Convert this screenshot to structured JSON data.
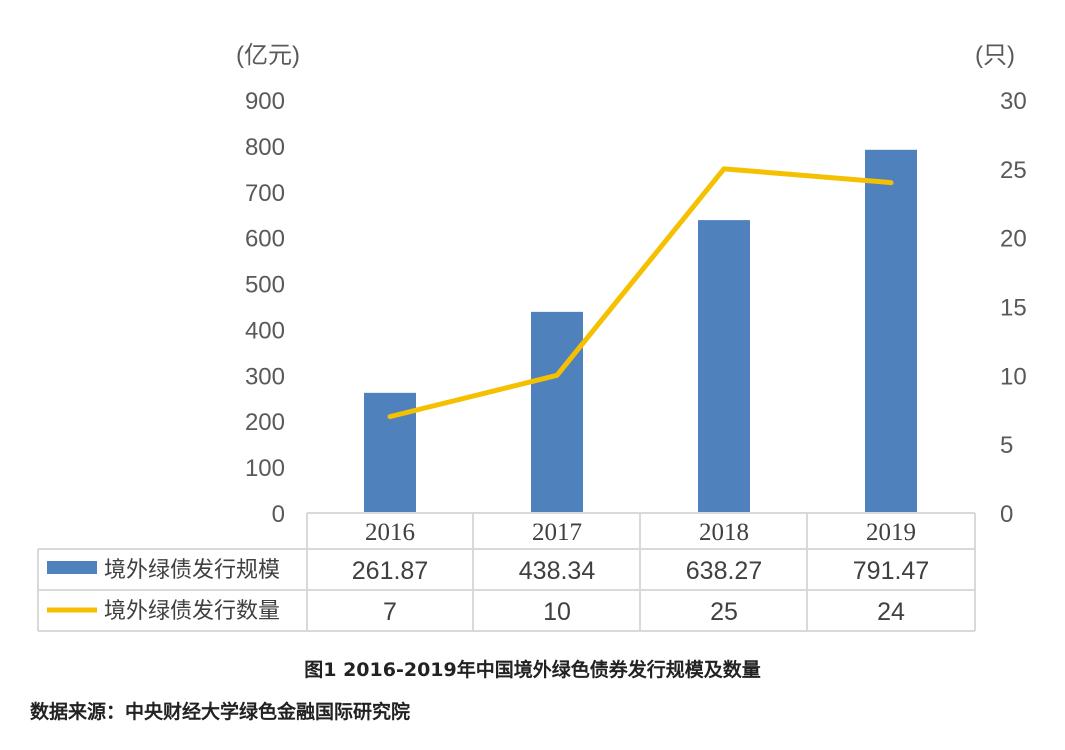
{
  "chart_data": {
    "type": "bar",
    "categories": [
      "2016",
      "2017",
      "2018",
      "2019"
    ],
    "series": [
      {
        "name": "境外绿债发行规模",
        "chart_type": "bar",
        "axis": "left",
        "values": [
          261.87,
          438.34,
          638.27,
          791.47
        ]
      },
      {
        "name": "境外绿债发行数量",
        "chart_type": "line",
        "axis": "right",
        "values": [
          7,
          10,
          25,
          24
        ]
      }
    ],
    "table_values": [
      [
        "261.87",
        "438.34",
        "638.27",
        "791.47"
      ],
      [
        "7",
        "10",
        "25",
        "24"
      ]
    ],
    "left_axis": {
      "unit": "(亿元)",
      "ylim": [
        0,
        900
      ],
      "ticks": [
        "0",
        "100",
        "200",
        "300",
        "400",
        "500",
        "600",
        "700",
        "800",
        "900"
      ]
    },
    "right_axis": {
      "unit": "(只)",
      "ylim": [
        0,
        30
      ],
      "ticks": [
        "0",
        "5",
        "10",
        "15",
        "20",
        "25",
        "30"
      ]
    },
    "grid": false,
    "legend": "data-table-rows",
    "colors": {
      "bar": "#4f81bd",
      "line": "#f5c000"
    }
  },
  "caption": "图1  2016-2019年中国境外绿色债券发行规模及数量",
  "source": "数据来源：中央财经大学绿色金融国际研究院"
}
